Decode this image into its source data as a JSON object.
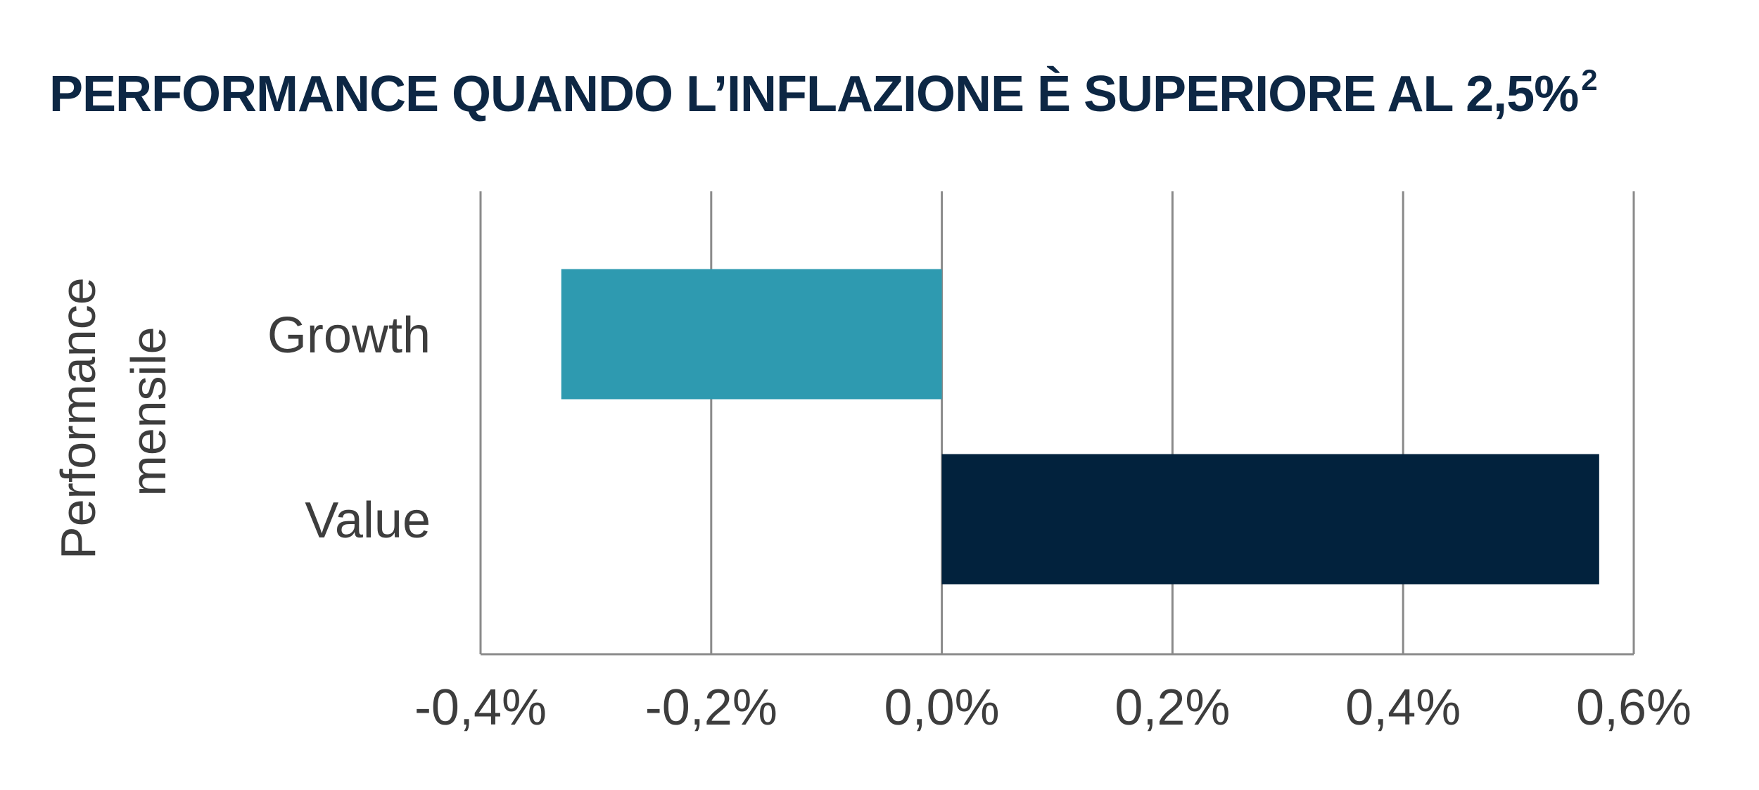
{
  "chart_data": {
    "type": "bar",
    "orientation": "horizontal",
    "title": "PERFORMANCE QUANDO L’INFLAZIONE È SUPERIORE AL 2,5%",
    "title_footnote": "2",
    "ylabel": [
      "Performance",
      "mensile"
    ],
    "xlabel": "",
    "categories": [
      "Growth",
      "Value"
    ],
    "values": [
      -0.33,
      0.57
    ],
    "bar_colors": [
      "#2e9ab0",
      "#02223d"
    ],
    "xlim": [
      -0.4,
      0.6
    ],
    "xticks": [
      -0.4,
      -0.2,
      0.0,
      0.2,
      0.4,
      0.6
    ],
    "xtick_labels": [
      "-0,4%",
      "-0,2%",
      "0,0%",
      "0,2%",
      "0,4%",
      "0,6%"
    ],
    "grid": "vertical",
    "legend": "none"
  },
  "colors": {
    "title": "#0d2744",
    "gridline": "#8a8a8a",
    "axis_text": "#3d3d3d"
  }
}
